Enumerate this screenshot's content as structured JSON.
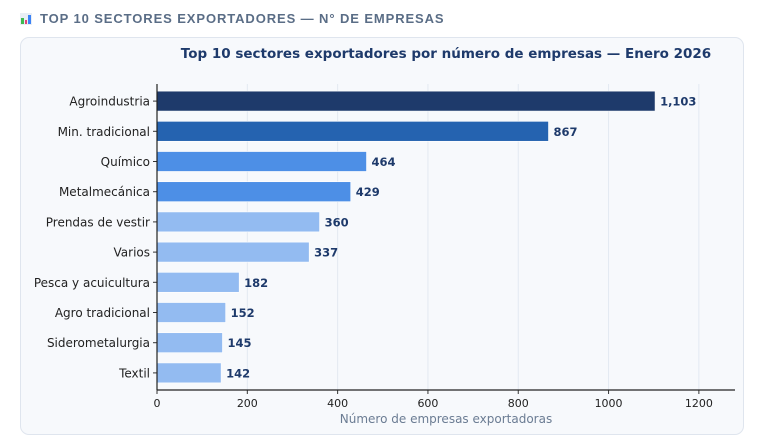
{
  "header": {
    "icon": "bar-chart-icon",
    "title": "TOP 10 SECTORES EXPORTADORES — N° DE EMPRESAS"
  },
  "chart_data": {
    "type": "bar",
    "orientation": "horizontal",
    "title": "Top 10 sectores exportadores por número de empresas — Enero 2026",
    "xlabel": "Número de empresas exportadoras",
    "ylabel": "",
    "categories": [
      "Agroindustria",
      "Min. tradicional",
      "Químico",
      "Metalmecánica",
      "Prendas de vestir",
      "Varios",
      "Pesca y acuicultura",
      "Agro tradicional",
      "Siderometalurgia",
      "Textil"
    ],
    "values": [
      1103,
      867,
      464,
      429,
      360,
      337,
      182,
      152,
      145,
      142
    ],
    "value_labels": [
      "1,103",
      "867",
      "464",
      "429",
      "360",
      "337",
      "182",
      "152",
      "145",
      "142"
    ],
    "colors": [
      "#1e3a6b",
      "#2563b0",
      "#4d8fe6",
      "#4d8fe6",
      "#93bbf1",
      "#93bbf1",
      "#93bbf1",
      "#93bbf1",
      "#93bbf1",
      "#93bbf1"
    ],
    "xlim": [
      0,
      1280
    ],
    "xticks": [
      0,
      200,
      400,
      600,
      800,
      1000,
      1200
    ],
    "grid": "vertical",
    "legend": "none"
  }
}
